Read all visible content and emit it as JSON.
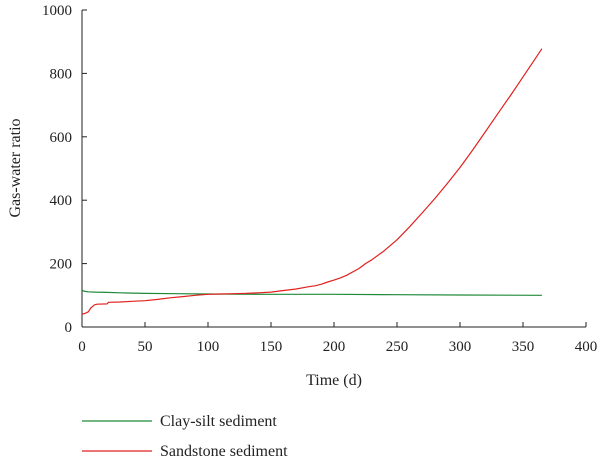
{
  "chart_data": {
    "type": "line",
    "xlabel": "Time (d)",
    "ylabel": "Gas-water ratio",
    "xlim": [
      0,
      400
    ],
    "ylim": [
      0,
      1000
    ],
    "xticks": [
      0,
      50,
      100,
      150,
      200,
      250,
      300,
      350,
      400
    ],
    "yticks": [
      0,
      200,
      400,
      600,
      800,
      1000
    ],
    "grid": false,
    "legend_position": "bottom-left",
    "series": [
      {
        "name": "Clay-silt sediment",
        "color": "#1f8a3a",
        "x": [
          0,
          1,
          2,
          3,
          5,
          10,
          20,
          30,
          50,
          75,
          100,
          150,
          200,
          250,
          300,
          365
        ],
        "y": [
          117,
          114,
          113,
          112,
          111,
          110,
          109,
          108,
          106,
          105,
          104,
          103,
          103,
          102,
          101,
          100
        ]
      },
      {
        "name": "Sandstone sediment",
        "color": "#e0221f",
        "x": [
          0,
          3,
          5,
          7,
          10,
          12,
          20,
          21,
          30,
          40,
          50,
          60,
          70,
          80,
          90,
          100,
          110,
          120,
          130,
          140,
          150,
          160,
          170,
          180,
          185,
          190,
          195,
          200,
          205,
          210,
          220,
          225,
          230,
          240,
          250,
          260,
          270,
          280,
          290,
          300,
          310,
          320,
          330,
          340,
          350,
          360,
          365
        ],
        "y": [
          40,
          44,
          48,
          60,
          70,
          72,
          73,
          78,
          79,
          81,
          83,
          87,
          92,
          96,
          100,
          103,
          104,
          105,
          106,
          108,
          110,
          115,
          120,
          127,
          130,
          135,
          142,
          148,
          155,
          163,
          185,
          200,
          212,
          241,
          275,
          316,
          360,
          405,
          453,
          503,
          558,
          615,
          673,
          730,
          789,
          848,
          878
        ]
      }
    ]
  }
}
